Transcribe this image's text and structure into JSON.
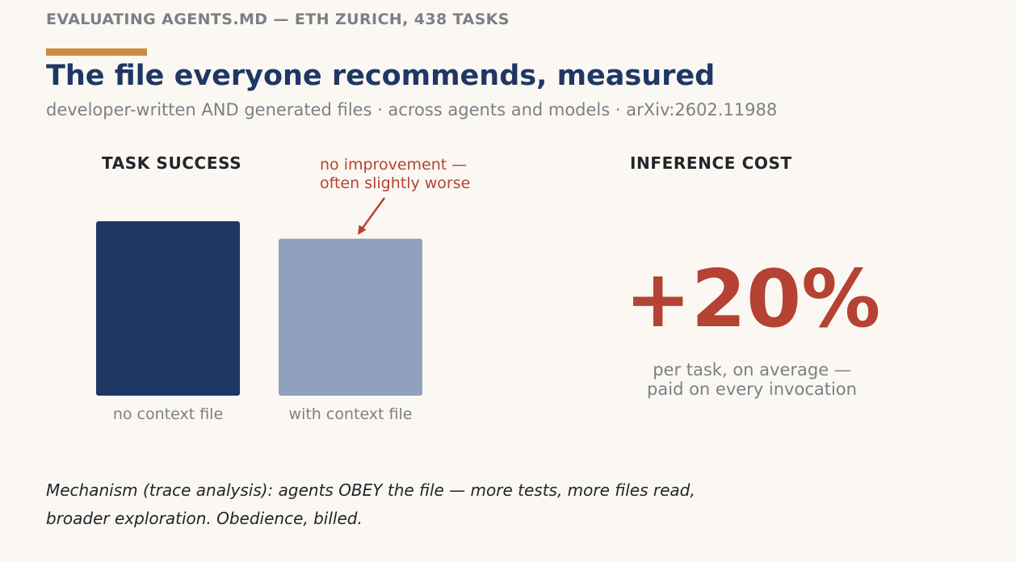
{
  "header": {
    "kicker": "EVALUATING AGENTS.MD — ETH ZURICH, 438 TASKS",
    "title": "The file everyone recommends, measured",
    "subtitle": "developer-written AND generated files · across agents and models · arXiv:2602.11988"
  },
  "colors": {
    "accent": "#c98d3f",
    "bar_no_context": "#1f3764",
    "bar_with_context": "#90a0bf",
    "highlight_red": "#b54232",
    "muted_text": "#7b7f87"
  },
  "task_success": {
    "heading": "TASK SUCCESS",
    "annotation_lines": [
      "no improvement —",
      "often slightly worse"
    ]
  },
  "chart_data": {
    "type": "bar",
    "title": "TASK SUCCESS",
    "categories": [
      "no context file",
      "with context file"
    ],
    "values": [
      1.0,
      0.9
    ],
    "colors": [
      "#1f3764",
      "#90a0bf"
    ],
    "xlabel": "",
    "ylabel": "",
    "grid": false,
    "axes_shown": false
  },
  "inference_cost": {
    "heading": "INFERENCE COST",
    "value": "+20%",
    "caption_lines": [
      "per task, on average —",
      "paid on every invocation"
    ]
  },
  "footnote": {
    "lines": [
      "Mechanism (trace analysis): agents OBEY the file — more tests, more files read,",
      "broader exploration. Obedience, billed."
    ]
  }
}
